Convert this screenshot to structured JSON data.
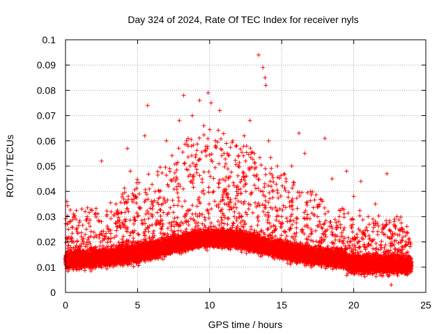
{
  "chart_data": {
    "type": "scatter",
    "title": "Day 324 of 2024, Rate Of TEC Index for receiver nyls",
    "xlabel": "GPS time / hours",
    "ylabel": "ROTI / TECUs",
    "xlim": [
      0,
      25
    ],
    "ylim": [
      0,
      0.1
    ],
    "x_ticks": [
      0,
      5,
      10,
      15,
      20,
      25
    ],
    "x_tick_labels": [
      "0",
      "5",
      "10",
      "15",
      "20",
      "25"
    ],
    "y_ticks": [
      0,
      0.01,
      0.02,
      0.03,
      0.04,
      0.05,
      0.06,
      0.07,
      0.08,
      0.09,
      0.1
    ],
    "y_tick_labels": [
      "0",
      "0.01",
      "0.02",
      "0.03",
      "0.04",
      "0.05",
      "0.06",
      "0.07",
      "0.08",
      "0.09",
      "0.1"
    ],
    "grid": true,
    "marker": "plus",
    "color": "#ff0000",
    "series": [
      {
        "name": "ROTI",
        "x": [
          0.0,
          0.1,
          0.2,
          0.3,
          0.5,
          1.0,
          1.5,
          2.1,
          2.5,
          3.0,
          3.5,
          4.0,
          4.3,
          4.5,
          5.0,
          5.5,
          5.7,
          6.0,
          6.5,
          7.0,
          7.2,
          7.5,
          7.9,
          8.2,
          8.4,
          8.8,
          9.0,
          9.3,
          9.6,
          9.9,
          10.1,
          10.4,
          10.7,
          11.0,
          11.3,
          11.6,
          12.0,
          12.4,
          12.8,
          13.1,
          13.4,
          13.7,
          13.85,
          13.9,
          14.1,
          14.4,
          14.7,
          15.0,
          15.3,
          15.7,
          16.2,
          16.6,
          17.0,
          17.5,
          18.0,
          18.5,
          19.0,
          19.5,
          20.0,
          20.5,
          21.0,
          21.5,
          22.0,
          22.3,
          22.6,
          23.0,
          23.5,
          23.9
        ],
        "y": [
          0.013,
          0.036,
          0.025,
          0.012,
          0.02,
          0.015,
          0.03,
          0.018,
          0.052,
          0.025,
          0.035,
          0.02,
          0.057,
          0.048,
          0.03,
          0.062,
          0.074,
          0.035,
          0.04,
          0.06,
          0.02,
          0.045,
          0.068,
          0.078,
          0.06,
          0.07,
          0.05,
          0.076,
          0.066,
          0.079,
          0.075,
          0.06,
          0.072,
          0.055,
          0.045,
          0.06,
          0.05,
          0.062,
          0.068,
          0.055,
          0.094,
          0.089,
          0.085,
          0.082,
          0.06,
          0.04,
          0.05,
          0.03,
          0.045,
          0.05,
          0.063,
          0.055,
          0.04,
          0.03,
          0.061,
          0.045,
          0.03,
          0.048,
          0.038,
          0.044,
          0.03,
          0.035,
          0.025,
          0.047,
          0.003,
          0.03,
          0.024,
          0.02
        ]
      }
    ]
  }
}
